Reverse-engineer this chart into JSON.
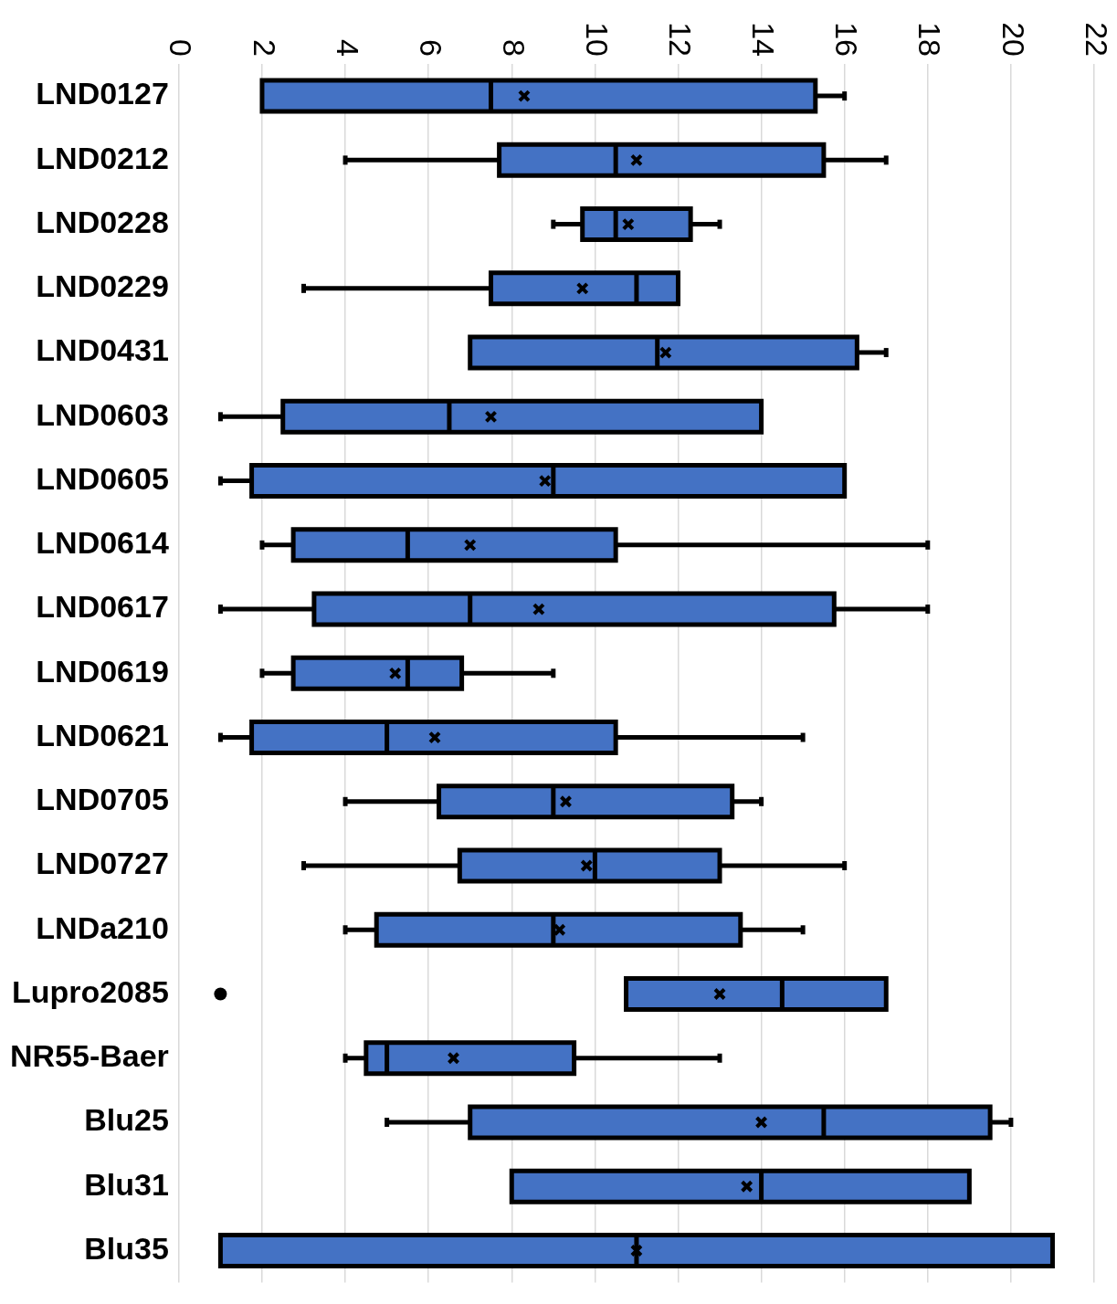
{
  "chart_data": {
    "type": "box",
    "orientation": "horizontal",
    "color": "#4472c4",
    "grid": "x",
    "legend": false,
    "xlim": [
      0,
      22
    ],
    "xticks": [
      0,
      2,
      4,
      6,
      8,
      10,
      12,
      14,
      16,
      18,
      20,
      22
    ],
    "categories": [
      "LND0127",
      "LND0212",
      "LND0228",
      "LND0229",
      "LND0431",
      "LND0603",
      "LND0605",
      "LND0614",
      "LND0617",
      "LND0619",
      "LND0621",
      "LND0705",
      "LND0727",
      "LNDa210",
      "Lupro2085",
      "NR55-Baer",
      "Blu25",
      "Blu31",
      "Blu35"
    ],
    "boxes": [
      {
        "low": 2,
        "q1": 2,
        "median": 7.5,
        "q3": 15.3,
        "high": 16,
        "mean": 8.3
      },
      {
        "low": 4,
        "q1": 7.7,
        "median": 10.5,
        "q3": 15.5,
        "high": 17,
        "mean": 11
      },
      {
        "low": 9,
        "q1": 9.7,
        "median": 10.5,
        "q3": 12.3,
        "high": 13,
        "mean": 10.8
      },
      {
        "low": 3,
        "q1": 7.5,
        "median": 11,
        "q3": 12,
        "high": 12,
        "mean": 9.7
      },
      {
        "low": 7,
        "q1": 7,
        "median": 11.5,
        "q3": 16.3,
        "high": 17,
        "mean": 11.7
      },
      {
        "low": 1,
        "q1": 2.5,
        "median": 6.5,
        "q3": 14,
        "high": 14,
        "mean": 7.5
      },
      {
        "low": 1,
        "q1": 1.75,
        "median": 9,
        "q3": 16,
        "high": 16,
        "mean": 8.8
      },
      {
        "low": 2,
        "q1": 2.75,
        "median": 5.5,
        "q3": 10.5,
        "high": 18,
        "mean": 7
      },
      {
        "low": 1,
        "q1": 3.25,
        "median": 7,
        "q3": 15.75,
        "high": 18,
        "mean": 8.65
      },
      {
        "low": 2,
        "q1": 2.75,
        "median": 5.5,
        "q3": 6.8,
        "high": 9,
        "mean": 5.2
      },
      {
        "low": 1,
        "q1": 1.75,
        "median": 5,
        "q3": 10.5,
        "high": 15,
        "mean": 6.15
      },
      {
        "low": 4,
        "q1": 6.25,
        "median": 9,
        "q3": 13.3,
        "high": 14,
        "mean": 9.3
      },
      {
        "low": 3,
        "q1": 6.75,
        "median": 10,
        "q3": 13,
        "high": 16,
        "mean": 9.8
      },
      {
        "low": 4,
        "q1": 4.75,
        "median": 9,
        "q3": 13.5,
        "high": 15,
        "mean": 9.15
      },
      {
        "low": 10.75,
        "q1": 10.75,
        "median": 14.5,
        "q3": 17,
        "high": 17,
        "mean": 13,
        "outliers": [
          1
        ]
      },
      {
        "low": 4,
        "q1": 4.5,
        "median": 5,
        "q3": 9.5,
        "high": 13,
        "mean": 6.6
      },
      {
        "low": 5,
        "q1": 7,
        "median": 15.5,
        "q3": 19.5,
        "high": 20,
        "mean": 14
      },
      {
        "low": 8,
        "q1": 8,
        "median": 14,
        "q3": 19,
        "high": 19,
        "mean": 13.65
      },
      {
        "low": 1,
        "q1": 1,
        "median": 11,
        "q3": 21,
        "high": 21,
        "mean": 11
      }
    ]
  }
}
